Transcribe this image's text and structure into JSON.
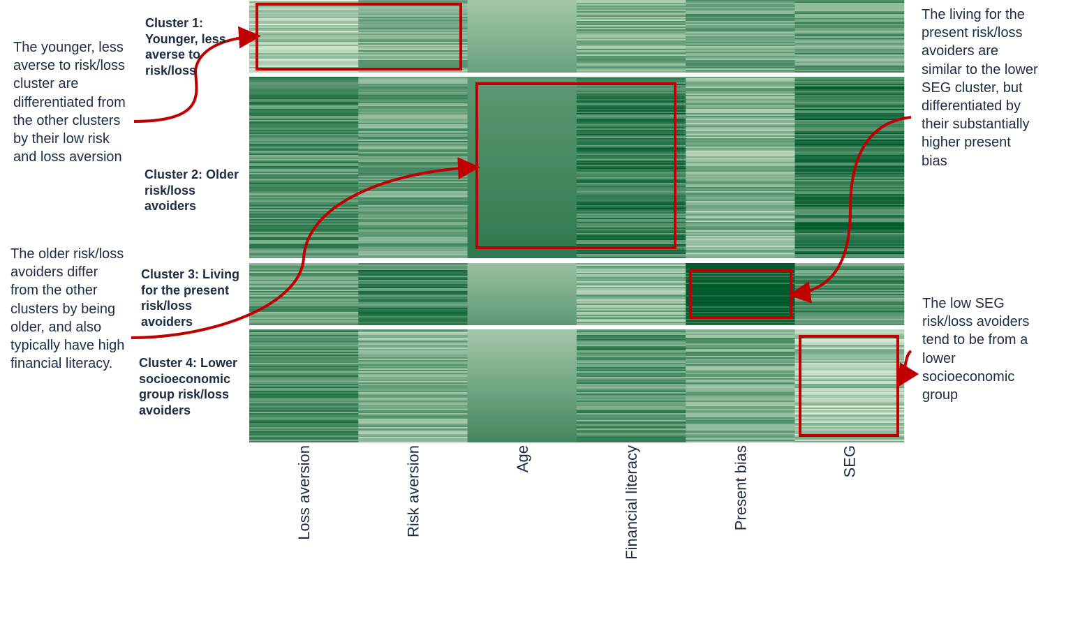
{
  "columns": [
    "Loss aversion",
    "Risk aversion",
    "Age",
    "Financial literacy",
    "Present bias",
    "SEG"
  ],
  "clusters": [
    {
      "label": "Cluster 1: Younger, less averse to risk/loss"
    },
    {
      "label": "Cluster 2: Older risk/loss avoiders"
    },
    {
      "label": "Cluster 3: Living for the present risk/loss avoiders"
    },
    {
      "label": "Cluster 4: Lower socioeconomic group risk/loss avoiders"
    }
  ],
  "annotations": [
    "The younger, less averse to risk/loss cluster are differentiated from the other clusters by their low risk and loss aversion",
    "The older risk/loss avoiders differ from the other clusters by being older, and also typically have high financial literacy.",
    "The living for the present risk/loss avoiders are similar to the lower SEG cluster, but differentiated by their substantially higher present bias",
    "The low SEG risk/loss avoiders tend to be from a lower socioeconomic group"
  ]
}
